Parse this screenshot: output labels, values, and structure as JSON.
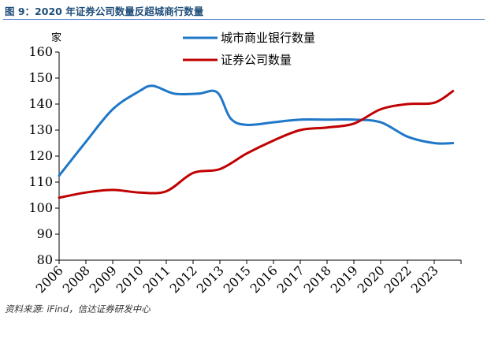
{
  "figure": {
    "title": "图 9：2020 年证券公司数量反超城商行数量",
    "source": "资料来源: iFind，信达证券研发中心"
  },
  "chart_data": {
    "type": "line",
    "ylabel": "家",
    "ylim": [
      80,
      160
    ],
    "yticks": [
      80,
      90,
      100,
      110,
      120,
      130,
      140,
      150,
      160
    ],
    "categories": [
      "2006",
      "2008",
      "2009",
      "2010",
      "2011",
      "2012",
      "2013",
      "2015",
      "2016",
      "2017",
      "2018",
      "2019",
      "2020",
      "2022",
      "2023"
    ],
    "grid": false,
    "legend_position": "top-center",
    "series": [
      {
        "name": "城市商业银行数量",
        "color": "#1F77C8",
        "points": [
          {
            "x": 0.0,
            "y": 112.5
          },
          {
            "x": 1.0,
            "y": 125.5
          },
          {
            "x": 2.0,
            "y": 138.0
          },
          {
            "x": 3.0,
            "y": 145.0
          },
          {
            "x": 3.5,
            "y": 147.0
          },
          {
            "x": 4.3,
            "y": 144.0
          },
          {
            "x": 5.2,
            "y": 144.0
          },
          {
            "x": 5.9,
            "y": 144.5
          },
          {
            "x": 6.4,
            "y": 134.5
          },
          {
            "x": 7.0,
            "y": 132.0
          },
          {
            "x": 8.0,
            "y": 133.0
          },
          {
            "x": 9.0,
            "y": 134.0
          },
          {
            "x": 10.0,
            "y": 134.0
          },
          {
            "x": 11.0,
            "y": 134.0
          },
          {
            "x": 12.0,
            "y": 133.0
          },
          {
            "x": 13.0,
            "y": 127.5
          },
          {
            "x": 14.0,
            "y": 125.0
          },
          {
            "x": 14.7,
            "y": 125.0
          }
        ]
      },
      {
        "name": "证券公司数量",
        "color": "#C00000",
        "points": [
          {
            "x": 0.0,
            "y": 104.0
          },
          {
            "x": 1.0,
            "y": 106.0
          },
          {
            "x": 2.0,
            "y": 107.0
          },
          {
            "x": 3.0,
            "y": 106.0
          },
          {
            "x": 4.0,
            "y": 106.5
          },
          {
            "x": 5.0,
            "y": 113.5
          },
          {
            "x": 6.0,
            "y": 115.0
          },
          {
            "x": 7.0,
            "y": 121.0
          },
          {
            "x": 8.0,
            "y": 126.0
          },
          {
            "x": 9.0,
            "y": 130.0
          },
          {
            "x": 10.0,
            "y": 131.0
          },
          {
            "x": 11.0,
            "y": 132.5
          },
          {
            "x": 12.0,
            "y": 138.0
          },
          {
            "x": 13.0,
            "y": 140.0
          },
          {
            "x": 14.0,
            "y": 140.5
          },
          {
            "x": 14.7,
            "y": 145.0
          }
        ]
      }
    ]
  }
}
